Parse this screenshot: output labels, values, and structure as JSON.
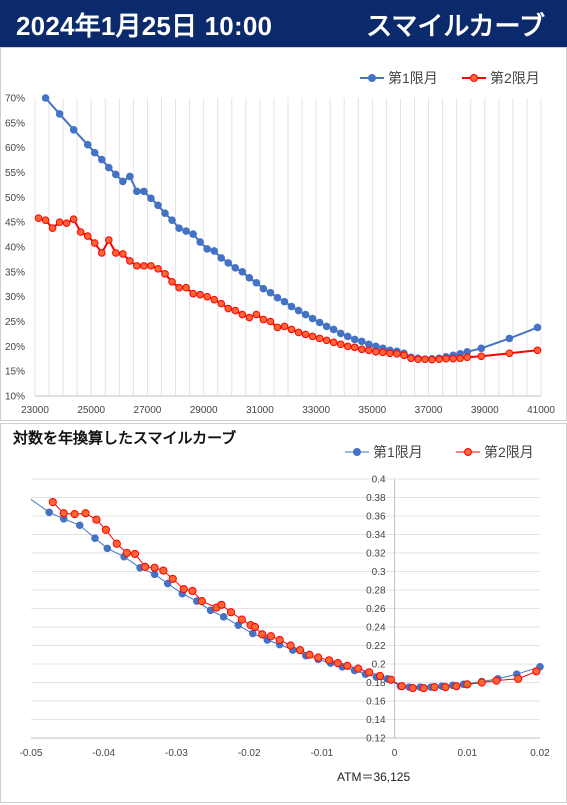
{
  "header": {
    "datetime": "2024年1月25日 10:00",
    "title": "スマイルカーブ"
  },
  "colors": {
    "s1": "#4472c4",
    "s2": "#ff0000",
    "s2fill": "#ff6633",
    "banner": "#0b2a6b"
  },
  "chart_data": [
    {
      "type": "line",
      "title": "",
      "xlim": [
        23000,
        41000
      ],
      "ylim": [
        10,
        70
      ],
      "xticks": [
        "23000",
        "25000",
        "27000",
        "29000",
        "31000",
        "33000",
        "35000",
        "37000",
        "39000",
        "41000"
      ],
      "yticks": [
        "10%",
        "15%",
        "20%",
        "25%",
        "30%",
        "35%",
        "40%",
        "45%",
        "50%",
        "55%",
        "60%",
        "65%",
        "70%"
      ],
      "grid": "vertical",
      "legend": "top-right",
      "series": [
        {
          "name": "第1限月",
          "points": [
            [
              23375,
              70
            ],
            [
              23875,
              66.8
            ],
            [
              24375,
              63.6
            ],
            [
              24875,
              60.6
            ],
            [
              25125,
              59
            ],
            [
              25375,
              57.6
            ],
            [
              25625,
              56
            ],
            [
              25875,
              54.6
            ],
            [
              26125,
              53.2
            ],
            [
              26375,
              54.2
            ],
            [
              26625,
              51.2
            ],
            [
              26875,
              51.2
            ],
            [
              27125,
              49.8
            ],
            [
              27375,
              48.4
            ],
            [
              27625,
              46.8
            ],
            [
              27875,
              45.4
            ],
            [
              28125,
              43.8
            ],
            [
              28375,
              43.2
            ],
            [
              28625,
              42.6
            ],
            [
              28875,
              41
            ],
            [
              29125,
              39.6
            ],
            [
              29375,
              39.2
            ],
            [
              29625,
              37.8
            ],
            [
              29875,
              36.8
            ],
            [
              30125,
              35.8
            ],
            [
              30375,
              35
            ],
            [
              30625,
              33.8
            ],
            [
              30875,
              32.8
            ],
            [
              31125,
              31.6
            ],
            [
              31375,
              30.8
            ],
            [
              31625,
              29.8
            ],
            [
              31875,
              29
            ],
            [
              32125,
              28
            ],
            [
              32375,
              27.2
            ],
            [
              32625,
              26.4
            ],
            [
              32875,
              25.6
            ],
            [
              33125,
              24.8
            ],
            [
              33375,
              24
            ],
            [
              33625,
              23.4
            ],
            [
              33875,
              22.6
            ],
            [
              34125,
              22
            ],
            [
              34375,
              21.4
            ],
            [
              34625,
              21
            ],
            [
              34875,
              20.4
            ],
            [
              35125,
              20
            ],
            [
              35375,
              19.6
            ],
            [
              35625,
              19.2
            ],
            [
              35875,
              19
            ],
            [
              36125,
              18.6
            ],
            [
              36375,
              17.8
            ],
            [
              36625,
              17.6
            ],
            [
              36875,
              17.4
            ],
            [
              37125,
              17.5
            ],
            [
              37375,
              17.6
            ],
            [
              37625,
              17.9
            ],
            [
              37875,
              18.2
            ],
            [
              38125,
              18.5
            ],
            [
              38375,
              18.9
            ],
            [
              38875,
              19.6
            ],
            [
              39875,
              21.6
            ],
            [
              40875,
              23.8
            ]
          ]
        },
        {
          "name": "第2限月",
          "points": [
            [
              23125,
              45.8
            ],
            [
              23375,
              45.4
            ],
            [
              23625,
              43.8
            ],
            [
              23875,
              45
            ],
            [
              24125,
              44.8
            ],
            [
              24375,
              45.6
            ],
            [
              24625,
              43
            ],
            [
              24875,
              42.2
            ],
            [
              25125,
              40.8
            ],
            [
              25375,
              38.8
            ],
            [
              25625,
              41.4
            ],
            [
              25875,
              38.8
            ],
            [
              26125,
              38.6
            ],
            [
              26375,
              37.2
            ],
            [
              26625,
              36.2
            ],
            [
              26875,
              36.2
            ],
            [
              27125,
              36.2
            ],
            [
              27375,
              35.6
            ],
            [
              27625,
              34.6
            ],
            [
              27875,
              33
            ],
            [
              28125,
              31.8
            ],
            [
              28375,
              31.8
            ],
            [
              28625,
              30.6
            ],
            [
              28875,
              30.4
            ],
            [
              29125,
              30
            ],
            [
              29375,
              29.4
            ],
            [
              29625,
              28.6
            ],
            [
              29875,
              27.6
            ],
            [
              30125,
              27.2
            ],
            [
              30375,
              26.4
            ],
            [
              30625,
              25.8
            ],
            [
              30875,
              26.4
            ],
            [
              31125,
              25.4
            ],
            [
              31375,
              25
            ],
            [
              31625,
              23.8
            ],
            [
              31875,
              24
            ],
            [
              32125,
              23.4
            ],
            [
              32375,
              22.8
            ],
            [
              32625,
              22.4
            ],
            [
              32875,
              22
            ],
            [
              33125,
              21.6
            ],
            [
              33375,
              21.2
            ],
            [
              33625,
              20.8
            ],
            [
              33875,
              20.4
            ],
            [
              34125,
              20
            ],
            [
              34375,
              19.8
            ],
            [
              34625,
              19.4
            ],
            [
              34875,
              19.2
            ],
            [
              35125,
              18.9
            ],
            [
              35375,
              18.8
            ],
            [
              35625,
              18.6
            ],
            [
              35875,
              18.5
            ],
            [
              36125,
              18.2
            ],
            [
              36375,
              17.6
            ],
            [
              36625,
              17.4
            ],
            [
              36875,
              17.4
            ],
            [
              37125,
              17.3
            ],
            [
              37375,
              17.4
            ],
            [
              37625,
              17.5
            ],
            [
              37875,
              17.5
            ],
            [
              38125,
              17.6
            ],
            [
              38375,
              17.8
            ],
            [
              38875,
              18
            ],
            [
              39875,
              18.6
            ],
            [
              40875,
              19.2
            ]
          ]
        }
      ]
    },
    {
      "type": "scatter",
      "title": "対数を年換算したスマイルカーブ",
      "xlim": [
        -0.05,
        0.02
      ],
      "ylim": [
        0.12,
        0.4
      ],
      "xticks": [
        "-0.05",
        "-0.04",
        "-0.03",
        "-0.02",
        "-0.01",
        "0",
        "0.01",
        "0.02"
      ],
      "yticks": [
        "0.12",
        "0.14",
        "0.16",
        "0.18",
        "0.2",
        "0.22",
        "0.24",
        "0.26",
        "0.28",
        "0.3",
        "0.32",
        "0.34",
        "0.36",
        "0.38",
        "0.4"
      ],
      "grid": "horizontal",
      "legend": "top-right",
      "annotation": "ATM＝36,125",
      "series": [
        {
          "name": "第1限月",
          "line_start": [
            -0.05,
            0.378
          ],
          "line_end": [
            0.02,
            0.197
          ],
          "points": [
            [
              -0.0475,
              0.364
            ],
            [
              -0.0455,
              0.357
            ],
            [
              -0.0433,
              0.35
            ],
            [
              -0.0412,
              0.336
            ],
            [
              -0.0395,
              0.325
            ],
            [
              -0.0372,
              0.316
            ],
            [
              -0.035,
              0.304
            ],
            [
              -0.033,
              0.297
            ],
            [
              -0.0312,
              0.287
            ],
            [
              -0.0292,
              0.276
            ],
            [
              -0.0272,
              0.268
            ],
            [
              -0.0253,
              0.258
            ],
            [
              -0.0235,
              0.251
            ],
            [
              -0.0215,
              0.242
            ],
            [
              -0.0195,
              0.233
            ],
            [
              -0.0175,
              0.226
            ],
            [
              -0.0158,
              0.221
            ],
            [
              -0.014,
              0.215
            ],
            [
              -0.0122,
              0.209
            ],
            [
              -0.0105,
              0.205
            ],
            [
              -0.0088,
              0.201
            ],
            [
              -0.0072,
              0.197
            ],
            [
              -0.0055,
              0.193
            ],
            [
              -0.004,
              0.189
            ],
            [
              -0.0025,
              0.186
            ],
            [
              -0.001,
              0.184
            ],
            [
              0.0008,
              0.176
            ],
            [
              0.002,
              0.175
            ],
            [
              0.0035,
              0.175
            ],
            [
              0.005,
              0.175
            ],
            [
              0.0065,
              0.176
            ],
            [
              0.008,
              0.177
            ],
            [
              0.0095,
              0.178
            ],
            [
              0.012,
              0.181
            ],
            [
              0.0142,
              0.184
            ],
            [
              0.0168,
              0.189
            ],
            [
              0.02,
              0.197
            ]
          ]
        },
        {
          "name": "第2限月",
          "line_start": [
            -0.047,
            0.375
          ],
          "line_end": [
            0.0195,
            0.192
          ],
          "points": [
            [
              -0.047,
              0.375
            ],
            [
              -0.0455,
              0.363
            ],
            [
              -0.044,
              0.362
            ],
            [
              -0.0425,
              0.363
            ],
            [
              -0.041,
              0.356
            ],
            [
              -0.0397,
              0.345
            ],
            [
              -0.0382,
              0.33
            ],
            [
              -0.0368,
              0.32
            ],
            [
              -0.0357,
              0.319
            ],
            [
              -0.0343,
              0.305
            ],
            [
              -0.033,
              0.304
            ],
            [
              -0.0318,
              0.301
            ],
            [
              -0.0305,
              0.292
            ],
            [
              -0.029,
              0.281
            ],
            [
              -0.0278,
              0.279
            ],
            [
              -0.0265,
              0.268
            ],
            [
              -0.0245,
              0.261
            ],
            [
              -0.0238,
              0.264
            ],
            [
              -0.0225,
              0.256
            ],
            [
              -0.021,
              0.248
            ],
            [
              -0.0198,
              0.242
            ],
            [
              -0.0192,
              0.24
            ],
            [
              -0.0182,
              0.232
            ],
            [
              -0.017,
              0.23
            ],
            [
              -0.0158,
              0.226
            ],
            [
              -0.0143,
              0.22
            ],
            [
              -0.013,
              0.215
            ],
            [
              -0.0117,
              0.21
            ],
            [
              -0.0105,
              0.207
            ],
            [
              -0.009,
              0.204
            ],
            [
              -0.0078,
              0.201
            ],
            [
              -0.0065,
              0.198
            ],
            [
              -0.005,
              0.195
            ],
            [
              -0.0035,
              0.191
            ],
            [
              -0.002,
              0.187
            ],
            [
              -0.0005,
              0.183
            ],
            [
              0.001,
              0.176
            ],
            [
              0.0025,
              0.174
            ],
            [
              0.004,
              0.174
            ],
            [
              0.0055,
              0.175
            ],
            [
              0.007,
              0.175
            ],
            [
              0.0085,
              0.176
            ],
            [
              0.01,
              0.178
            ],
            [
              0.012,
              0.18
            ],
            [
              0.014,
              0.182
            ],
            [
              0.017,
              0.184
            ],
            [
              0.0195,
              0.192
            ]
          ]
        }
      ]
    }
  ]
}
